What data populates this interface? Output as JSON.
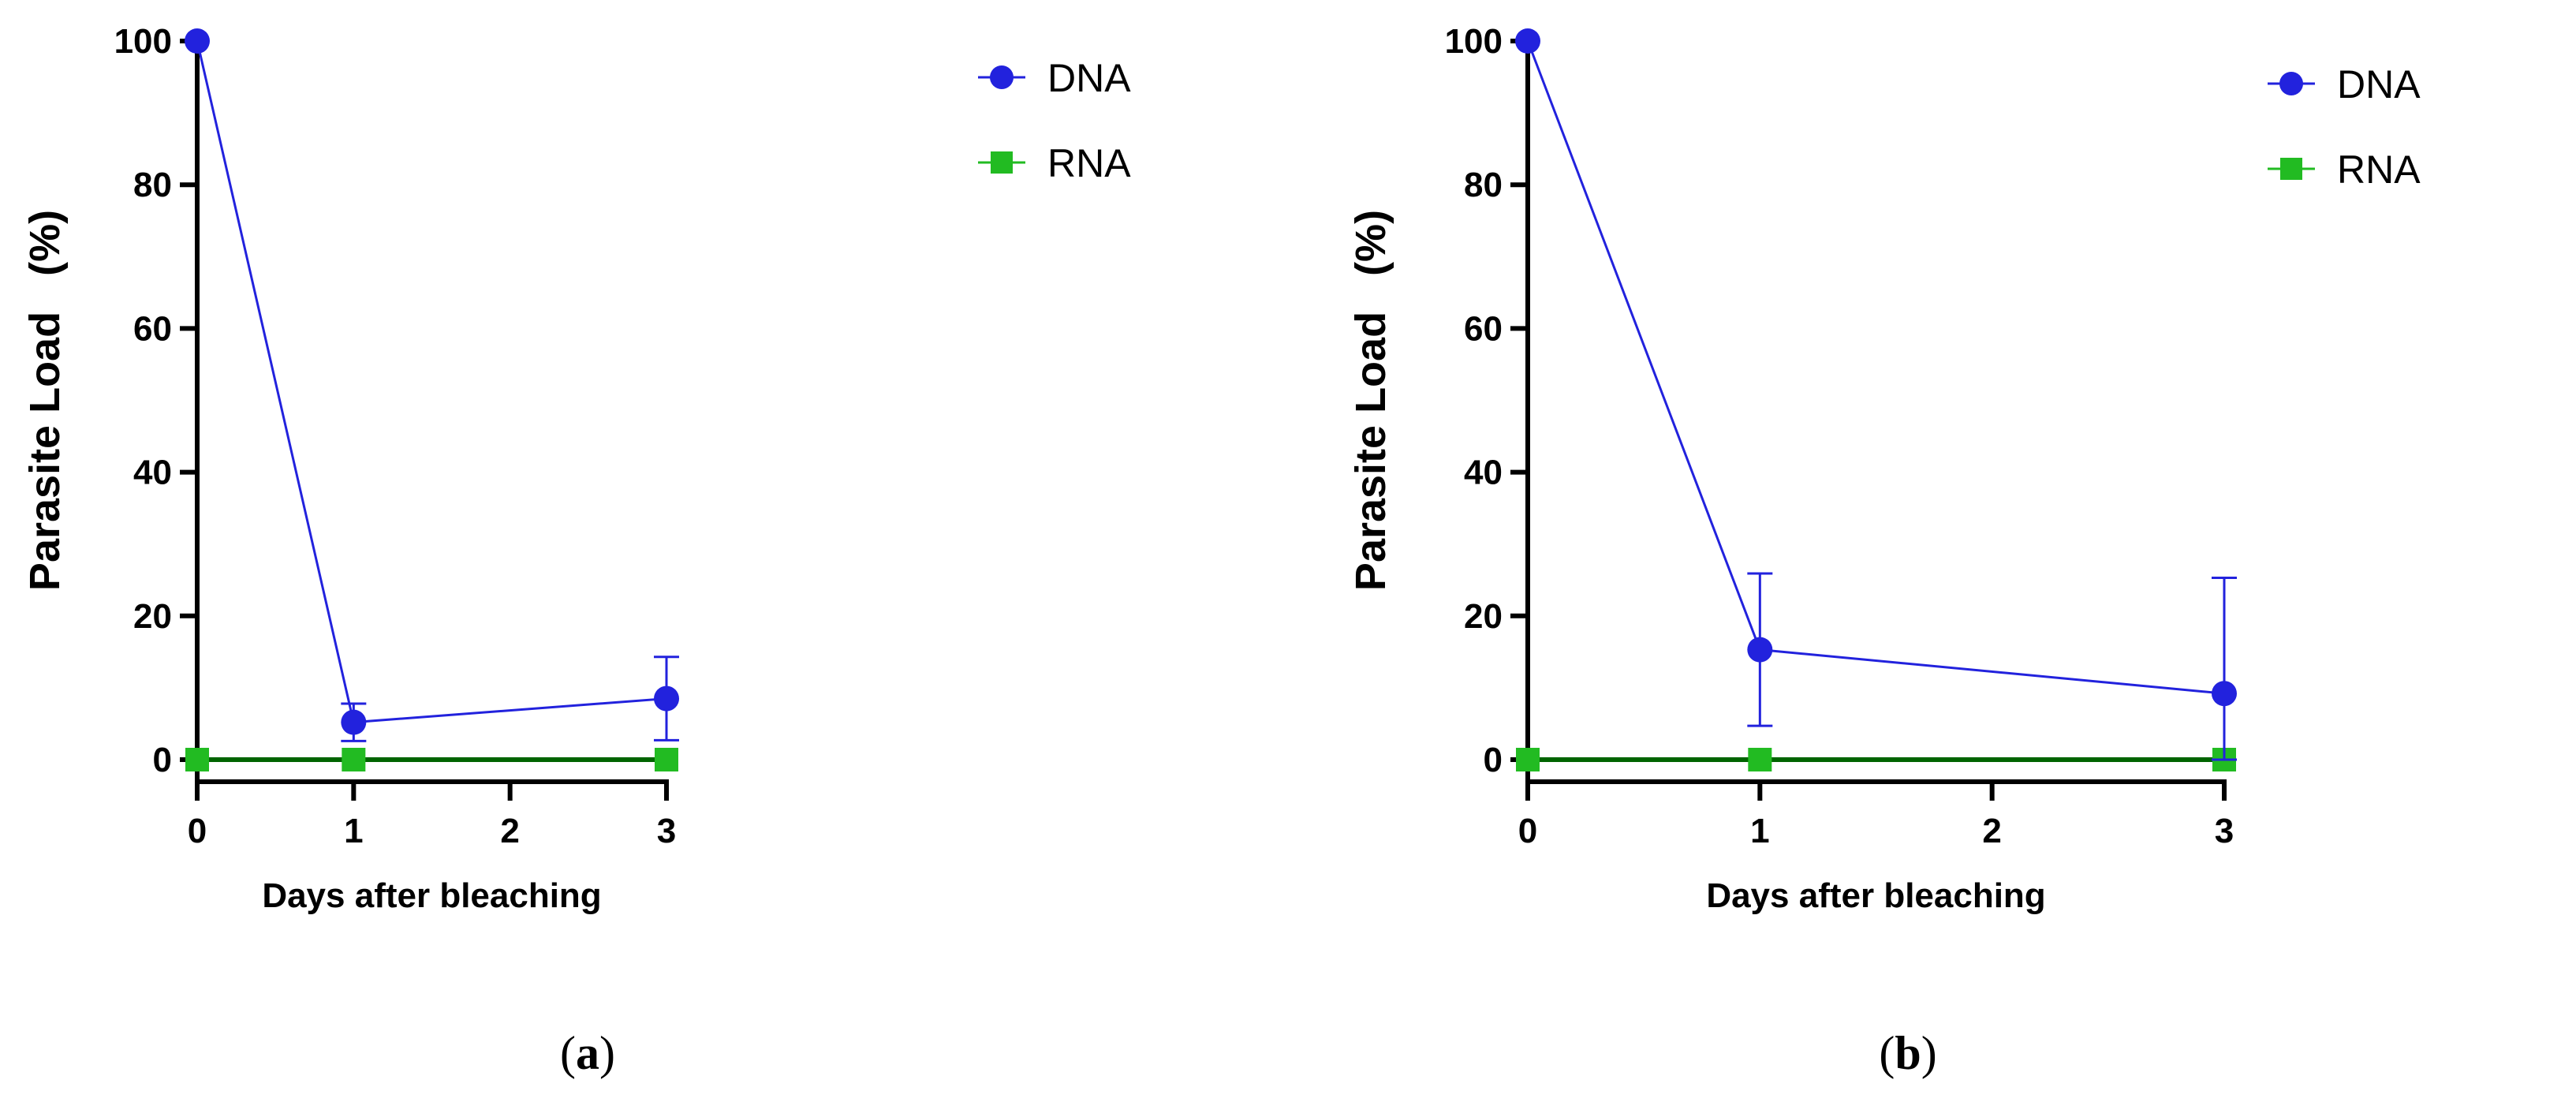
{
  "chart_data": [
    {
      "type": "line",
      "panel_label": {
        "open": "(",
        "letter": "a",
        "close": ")"
      },
      "xlabel": "Days after bleaching",
      "ylabel": "Parasite Load   (%)",
      "x_ticks": [
        0,
        1,
        2,
        3
      ],
      "y_ticks": [
        0,
        20,
        40,
        60,
        80,
        100
      ],
      "xlim": [
        0,
        3
      ],
      "ylim": [
        0,
        100
      ],
      "legend_position": "top-right",
      "series": [
        {
          "name": "DNA",
          "color": "#2222dd",
          "marker": "circle",
          "x": [
            0,
            1,
            3
          ],
          "y": [
            100,
            5.2,
            8.5
          ],
          "err_upper": [
            0,
            2.6,
            5.8
          ],
          "err_lower": [
            0,
            2.6,
            5.8
          ]
        },
        {
          "name": "RNA",
          "color": "#22bb22",
          "line_color": "#006400",
          "marker": "square",
          "x": [
            0,
            1,
            3
          ],
          "y": [
            0,
            0,
            0
          ],
          "err_upper": [
            0,
            0,
            0
          ],
          "err_lower": [
            0,
            0,
            0
          ]
        }
      ]
    },
    {
      "type": "line",
      "panel_label": {
        "open": "(",
        "letter": "b",
        "close": ")"
      },
      "xlabel": "Days after bleaching",
      "ylabel": "Parasite Load   (%)",
      "x_ticks": [
        0,
        1,
        2,
        3
      ],
      "y_ticks": [
        0,
        20,
        40,
        60,
        80,
        100
      ],
      "xlim": [
        0,
        3
      ],
      "ylim": [
        0,
        100
      ],
      "legend_position": "top-right",
      "series": [
        {
          "name": "DNA",
          "color": "#2222dd",
          "marker": "circle",
          "x": [
            0,
            1,
            3
          ],
          "y": [
            100,
            15.3,
            9.2
          ],
          "err_upper": [
            0,
            10.6,
            16.1
          ],
          "err_lower": [
            0,
            10.6,
            9.2
          ]
        },
        {
          "name": "RNA",
          "color": "#22bb22",
          "line_color": "#006400",
          "marker": "square",
          "x": [
            0,
            1,
            3
          ],
          "y": [
            0,
            0,
            0
          ],
          "err_upper": [
            0,
            0,
            0
          ],
          "err_lower": [
            0,
            0,
            0
          ]
        }
      ]
    }
  ]
}
